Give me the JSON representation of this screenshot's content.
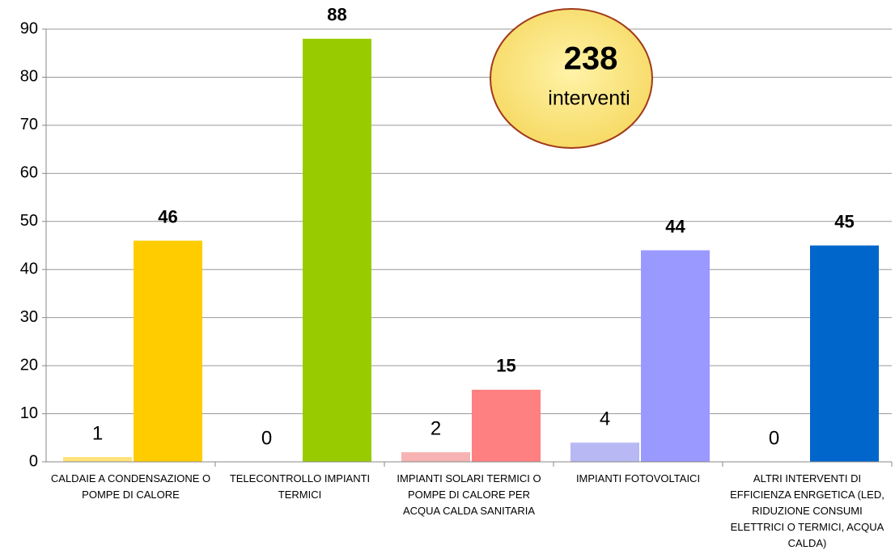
{
  "chart_data": {
    "type": "bar",
    "categories": [
      "CALDAIE A CONDENSAZIONE O POMPE DI CALORE",
      "TELECONTROLLO IMPIANTI TERMICI",
      "IMPIANTI SOLARI TERMICI O POMPE DI CALORE PER ACQUA CALDA SANITARIA",
      "IMPIANTI FOTOVOLTAICI",
      "ALTRI INTERVENTI DI EFFICIENZA ENRGETICA (LED, RIDUZIONE CONSUMI ELETTRICI O TERMICI, ACQUA CALDA)"
    ],
    "series": [
      {
        "values": [
          1,
          0,
          2,
          4,
          0
        ],
        "colors": [
          "#ffe27a",
          "#cfe88a",
          "#f7b3b3",
          "#b8b8f5",
          "#8fb5e6"
        ]
      },
      {
        "values": [
          46,
          88,
          15,
          44,
          45
        ],
        "colors": [
          "#ffcc00",
          "#99cc00",
          "#ff8080",
          "#9999ff",
          "#0066cc"
        ]
      }
    ],
    "annotation": {
      "value": "238",
      "text": "interventi"
    },
    "ylim": [
      0,
      90
    ],
    "yticks": [
      0,
      10,
      20,
      30,
      40,
      50,
      60,
      70,
      80,
      90
    ],
    "grid": true
  }
}
